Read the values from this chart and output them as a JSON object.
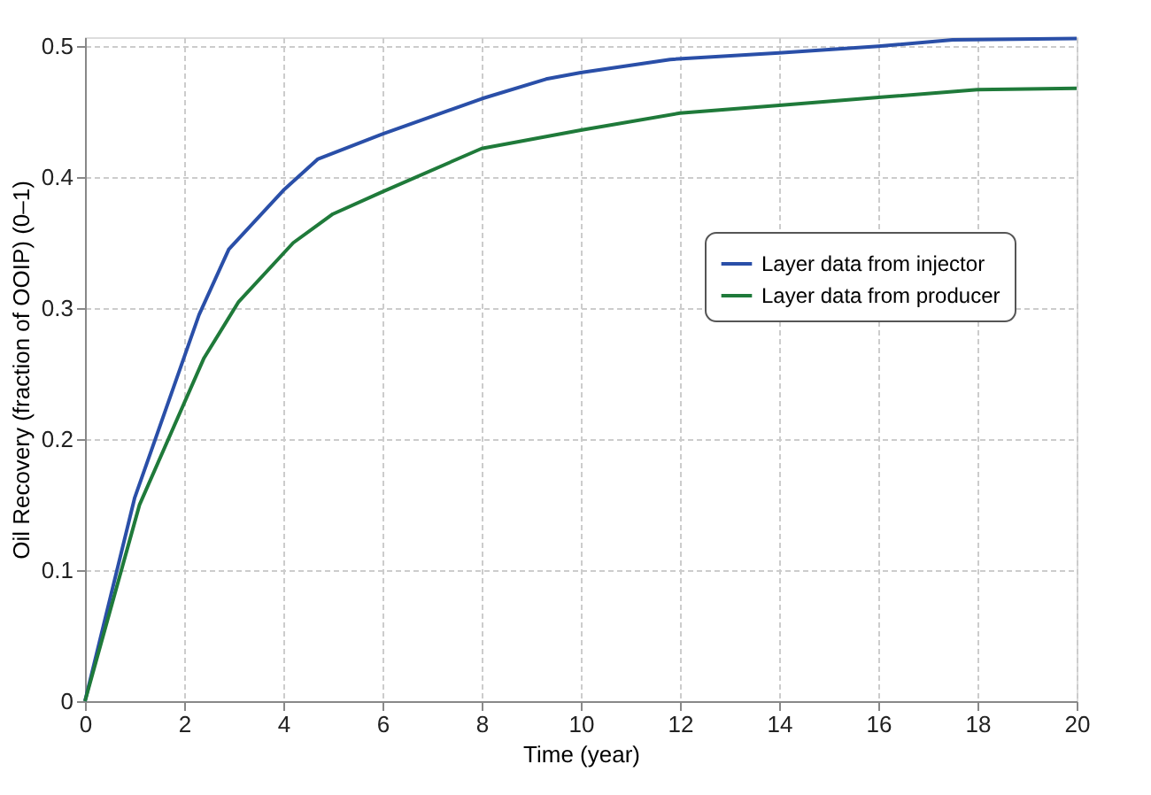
{
  "chart_data": {
    "type": "line",
    "xlabel": "Time (year)",
    "ylabel": "Oil Recovery (fraction of OOIP) (0–1)",
    "xlim": [
      0,
      20
    ],
    "ylim": [
      0,
      0.507
    ],
    "xticks": [
      0,
      2,
      4,
      6,
      8,
      10,
      12,
      14,
      16,
      18,
      20
    ],
    "yticks": [
      0,
      0.1,
      0.2,
      0.3,
      0.4,
      0.5
    ],
    "grid": true,
    "legend": "right",
    "marker": "none",
    "line_style": "solid",
    "series": [
      {
        "name": "Layer data from injector",
        "color": "#2a4fa8",
        "x": [
          0,
          1,
          2.3,
          2.9,
          4,
          4.7,
          6,
          8,
          9.3,
          10,
          11.8,
          14,
          16,
          17.5,
          20
        ],
        "values": [
          0,
          0.155,
          0.295,
          0.345,
          0.39,
          0.414,
          0.433,
          0.46,
          0.475,
          0.48,
          0.49,
          0.495,
          0.5,
          0.505,
          0.506
        ]
      },
      {
        "name": "Layer data from producer",
        "color": "#1f7a3a",
        "x": [
          0,
          1.1,
          2.4,
          3.1,
          4.2,
          5,
          6,
          8,
          10,
          12,
          14,
          16,
          18,
          20
        ],
        "values": [
          0,
          0.15,
          0.262,
          0.305,
          0.35,
          0.372,
          0.389,
          0.422,
          0.436,
          0.449,
          0.455,
          0.461,
          0.467,
          0.468
        ]
      }
    ]
  }
}
